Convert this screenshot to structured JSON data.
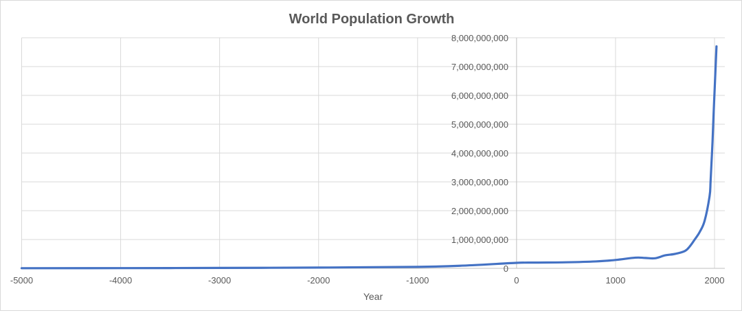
{
  "chart_data": {
    "type": "line",
    "title": "World Population Growth",
    "xlabel": "Year",
    "ylabel": "",
    "xlim": [
      -5000,
      2000
    ],
    "ylim": [
      0,
      8000000000
    ],
    "x_ticks": [
      -5000,
      -4000,
      -3000,
      -2000,
      -1000,
      0,
      1000,
      2000
    ],
    "y_ticks": [
      0,
      1000000000,
      2000000000,
      3000000000,
      4000000000,
      5000000000,
      6000000000,
      7000000000,
      8000000000
    ],
    "y_tick_labels": [
      "0",
      "1,000,000,000",
      "2,000,000,000",
      "3,000,000,000",
      "4,000,000,000",
      "5,000,000,000",
      "6,000,000,000",
      "7,000,000,000",
      "8,000,000,000"
    ],
    "grid": true,
    "legend": "none",
    "series": [
      {
        "color": "#4472c4",
        "x": [
          -5000,
          -4000,
          -3000,
          -2000,
          -1000,
          -500,
          0,
          200,
          500,
          800,
          1000,
          1200,
          1300,
          1400,
          1500,
          1600,
          1700,
          1750,
          1800,
          1850,
          1900,
          1950,
          1960,
          1970,
          1980,
          1990,
          2000,
          2010,
          2020
        ],
        "y": [
          5000000,
          7000000,
          14000000,
          27000000,
          50000000,
          100000000,
          190000000,
          200000000,
          210000000,
          240000000,
          290000000,
          370000000,
          360000000,
          350000000,
          450000000,
          500000000,
          600000000,
          760000000,
          1000000000,
          1260000000,
          1650000000,
          2500000000,
          3000000000,
          3700000000,
          4400000000,
          5300000000,
          6100000000,
          6900000000,
          7700000000
        ]
      }
    ]
  }
}
